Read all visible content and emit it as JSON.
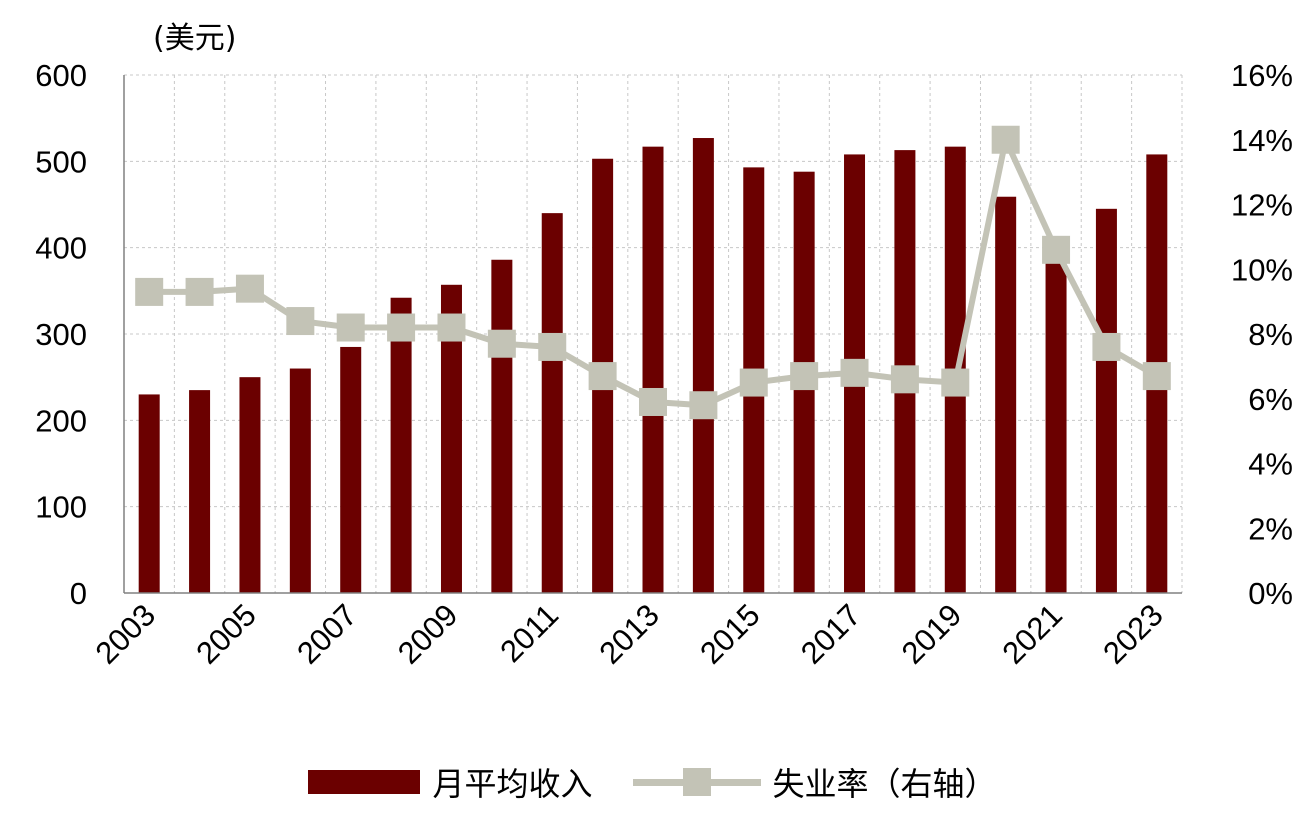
{
  "chart_data": {
    "type": "bar",
    "unit_label": "(美元)",
    "categories": [
      "2003",
      "2004",
      "2005",
      "2006",
      "2007",
      "2008",
      "2009",
      "2010",
      "2011",
      "2012",
      "2013",
      "2014",
      "2015",
      "2016",
      "2017",
      "2018",
      "2019",
      "2020",
      "2021",
      "2022",
      "2023"
    ],
    "x_tick_labels": [
      "2003",
      "2005",
      "2007",
      "2009",
      "2011",
      "2013",
      "2015",
      "2017",
      "2019",
      "2021",
      "2023"
    ],
    "left_axis": {
      "ticks": [
        "0",
        "100",
        "200",
        "300",
        "400",
        "500",
        "600"
      ],
      "ylim": [
        0,
        600
      ]
    },
    "right_axis": {
      "ticks": [
        "0%",
        "2%",
        "4%",
        "6%",
        "8%",
        "10%",
        "12%",
        "14%",
        "16%"
      ],
      "ylim": [
        0,
        16
      ]
    },
    "grid": true,
    "series": [
      {
        "name": "月平均收入",
        "kind": "bar",
        "axis": "left",
        "color": "#6b0000",
        "values": [
          230,
          235,
          250,
          260,
          285,
          342,
          357,
          386,
          440,
          503,
          517,
          527,
          493,
          488,
          508,
          513,
          517,
          459,
          398,
          445,
          508
        ]
      },
      {
        "name": "失业率（右轴）",
        "kind": "line",
        "axis": "right",
        "color": "#c3c3b6",
        "values": [
          9.3,
          9.3,
          9.4,
          8.4,
          8.2,
          8.2,
          8.2,
          7.7,
          7.6,
          6.7,
          5.9,
          5.8,
          6.5,
          6.7,
          6.8,
          6.6,
          6.5,
          14.0,
          10.6,
          7.6,
          6.7
        ]
      }
    ],
    "legend_position": "bottom"
  }
}
